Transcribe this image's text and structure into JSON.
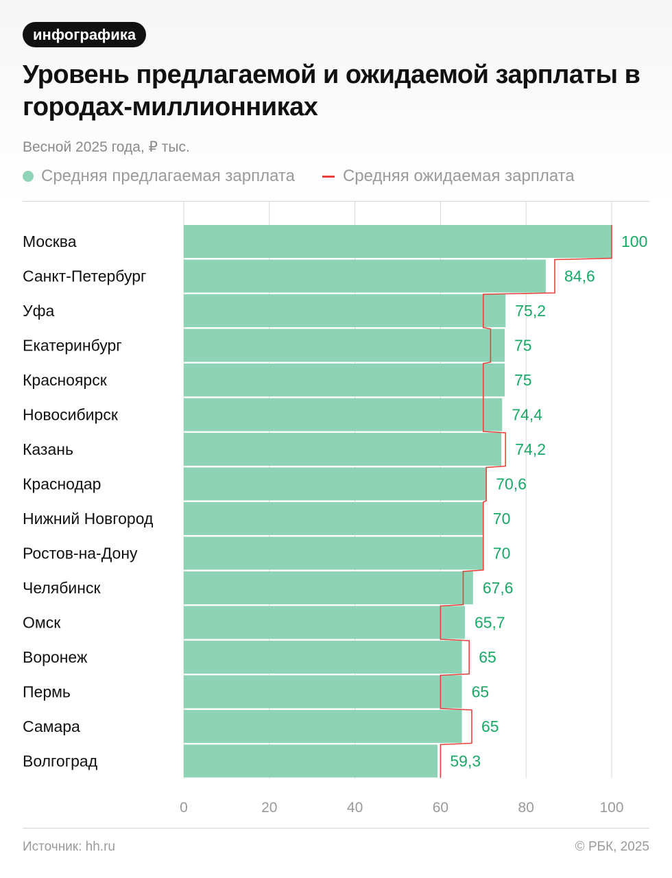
{
  "header": {
    "badge": "инфографика",
    "title": "Уровень предлагаемой и ожидаемой зарплаты в городах-миллионниках",
    "subtitle": "Весной 2025 года, ₽ тыс."
  },
  "legend": {
    "offered": "Средняя предлагаемая зарплата",
    "expected": "Средняя ожидаемая зарплата"
  },
  "colors": {
    "bar": "#8fd3b6",
    "value_label": "#1aa866",
    "expected_line": "#e8413c",
    "grid": "#d9d9d9"
  },
  "chart_data": {
    "type": "bar",
    "orientation": "horizontal",
    "title": "Уровень предлагаемой и ожидаемой зарплаты в городах-миллионниках",
    "subtitle": "Весной 2025 года, ₽ тыс.",
    "categories": [
      "Москва",
      "Санкт-Петербург",
      "Уфа",
      "Екатеринбург",
      "Красноярск",
      "Новосибирск",
      "Казань",
      "Краснодар",
      "Нижний Новгород",
      "Ростов-на-Дону",
      "Челябинск",
      "Омск",
      "Воронеж",
      "Пермь",
      "Самара",
      "Волгоград"
    ],
    "series": [
      {
        "name": "Средняя предлагаемая зарплата",
        "values": [
          100,
          84.6,
          75.2,
          75,
          75,
          74.4,
          74.2,
          70.6,
          70,
          70,
          67.6,
          65.7,
          65,
          65,
          65,
          59.3
        ],
        "labels": [
          "100",
          "84,6",
          "75,2",
          "75",
          "75",
          "74,4",
          "74,2",
          "70,6",
          "70",
          "70",
          "67,6",
          "65,7",
          "65",
          "65",
          "65",
          "59,3"
        ]
      },
      {
        "name": "Средняя ожидаемая зарплата",
        "style": "step-line",
        "values": [
          100,
          86.7,
          70,
          71.7,
          70,
          70,
          75.2,
          70.7,
          70,
          70,
          65.3,
          60,
          66.7,
          60,
          67.3,
          60
        ]
      }
    ],
    "xlim": [
      0,
      100
    ],
    "xticks": [
      0,
      20,
      40,
      60,
      80,
      100
    ],
    "grid": true
  },
  "footer": {
    "source": "Источник: hh.ru",
    "copyright": "© РБК, 2025"
  }
}
